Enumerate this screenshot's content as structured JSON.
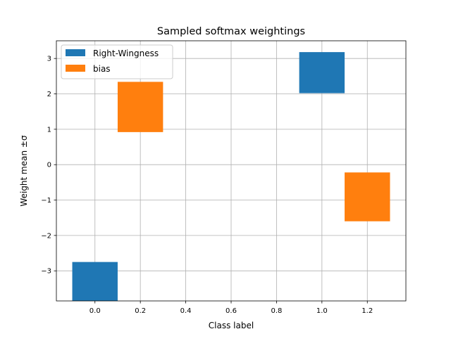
{
  "chart_data": {
    "type": "bar",
    "title": "Sampled softmax weightings",
    "xlabel": "Class label",
    "ylabel": "Weight mean ±σ",
    "xlim": [
      -0.17,
      1.37
    ],
    "ylim": [
      -3.85,
      3.5
    ],
    "xticks": [
      "0.0",
      "0.2",
      "0.4",
      "0.6",
      "0.8",
      "1.0",
      "1.2"
    ],
    "yticks": [
      "−3",
      "−2",
      "−1",
      "0",
      "1",
      "2",
      "3"
    ],
    "grid": true,
    "legend_position": "upper left",
    "bar_width": 0.2,
    "series": [
      {
        "name": "Right-Wingness",
        "color": "#1f77b4",
        "bars": [
          {
            "x": 0.0,
            "bottom": -3.85,
            "top": -2.75
          },
          {
            "x": 1.0,
            "bottom": 2.02,
            "top": 3.18
          }
        ]
      },
      {
        "name": "bias",
        "color": "#ff7f0e",
        "bars": [
          {
            "x": 0.2,
            "bottom": 0.92,
            "top": 2.34
          },
          {
            "x": 1.2,
            "bottom": -1.6,
            "top": -0.22
          }
        ]
      }
    ]
  }
}
